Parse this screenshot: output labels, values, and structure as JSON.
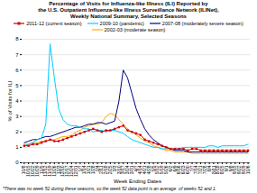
{
  "chart_data": {
    "type": "line",
    "title": "Percentage of Visits for Influenza-like Illness (ILI) Reported by\nthe U.S. Outpatient Influenza-like Illness Surveillance Network (ILINet),\nWeekly National Summary, Selected Seasons",
    "x_label": "Week Ending Dates",
    "y_label": "% of Visits for ILI",
    "footnote": "*There was no week 52 during these seasons, so the week 52 data point is an average  of weeks 52 and 1.",
    "categories": [
      "10/8",
      "10/15",
      "10/22",
      "10/29",
      "11/5",
      "11/12",
      "11/19",
      "11/26",
      "12/3",
      "12/10",
      "12/17",
      "12/24",
      "12/31",
      "1/7",
      "1/14",
      "1/21",
      "1/28",
      "2/4",
      "2/11",
      "2/18",
      "2/25",
      "3/3",
      "3/10",
      "3/17",
      "3/24",
      "3/31",
      "4/7",
      "4/14",
      "4/21",
      "4/28",
      "5/5",
      "5/12",
      "5/19",
      "5/26",
      "6/2",
      "6/9",
      "6/16",
      "6/23",
      "6/30",
      "7/7",
      "7/14",
      "7/21",
      "7/28",
      "8/4",
      "8/11",
      "8/18",
      "8/25",
      "9/1",
      "9/8",
      "9/15",
      "9/22",
      "9/29",
      "10/6"
    ],
    "series": [
      {
        "name": "2011-12 (current season)",
        "color": "#cc0000",
        "marker": "square",
        "values": [
          1.1,
          1.1,
          1.2,
          1.2,
          1.3,
          1.4,
          1.5,
          1.4,
          1.4,
          1.5,
          1.6,
          1.7,
          1.8,
          1.9,
          2.0,
          2.1,
          2.2,
          2.1,
          2.0,
          2.1,
          2.1,
          2.2,
          2.3,
          2.4,
          2.1,
          2.0,
          1.9,
          1.8,
          1.5,
          1.4,
          1.3,
          1.2,
          1.1,
          1.0,
          0.9,
          0.9,
          0.9,
          0.9,
          0.8,
          0.9,
          0.9,
          0.8,
          0.8,
          0.8,
          0.8,
          0.8,
          0.8,
          0.8,
          0.8,
          0.8,
          0.8,
          0.8,
          0.8
        ]
      },
      {
        "name": "2009-10 (pandemic)",
        "color": "#00ccff",
        "values": [
          1.1,
          1.2,
          1.3,
          1.5,
          1.6,
          2.5,
          7.7,
          5.5,
          3.5,
          2.8,
          2.5,
          2.4,
          2.4,
          2.3,
          2.2,
          2.2,
          2.0,
          2.1,
          2.1,
          2.0,
          2.1,
          2.1,
          2.0,
          1.9,
          1.7,
          1.5,
          1.4,
          1.3,
          1.2,
          1.1,
          1.0,
          1.0,
          0.9,
          0.9,
          0.9,
          0.9,
          0.9,
          1.0,
          1.0,
          1.0,
          1.0,
          1.0,
          1.0,
          1.1,
          1.1,
          1.0,
          1.1,
          1.1,
          1.1,
          1.1,
          1.1,
          1.1,
          1.2
        ]
      },
      {
        "name": "2007-08 (moderately severe season)",
        "color": "#000080",
        "values": [
          1.3,
          1.4,
          1.5,
          1.5,
          1.6,
          1.7,
          1.7,
          1.8,
          1.9,
          2.0,
          2.1,
          2.2,
          2.3,
          2.3,
          2.4,
          2.5,
          2.5,
          2.6,
          2.6,
          2.5,
          2.6,
          2.7,
          4.0,
          6.0,
          5.5,
          4.5,
          3.5,
          2.8,
          2.2,
          1.8,
          1.5,
          1.3,
          1.1,
          1.0,
          0.9,
          0.8,
          0.8,
          0.8,
          0.7,
          0.7,
          0.7,
          0.7,
          0.7,
          0.7,
          0.7,
          0.7,
          0.7,
          0.7,
          0.7,
          0.7,
          0.7,
          0.7,
          0.7
        ]
      },
      {
        "name": "2002-03 (moderate season)",
        "color": "#ffaa00",
        "values": [
          1.2,
          1.2,
          1.3,
          1.3,
          1.4,
          1.4,
          1.5,
          1.5,
          1.6,
          1.7,
          1.7,
          1.8,
          2.0,
          2.1,
          2.3,
          2.4,
          2.5,
          2.5,
          2.6,
          3.0,
          3.2,
          3.1,
          2.8,
          2.5,
          2.2,
          2.0,
          1.8,
          1.6,
          1.4,
          1.3,
          1.1,
          1.0,
          0.9,
          0.8,
          0.8,
          0.7,
          0.7,
          0.7,
          0.7,
          0.6,
          0.6,
          0.6,
          0.6,
          0.6,
          0.6,
          0.6,
          0.6,
          0.6,
          0.6,
          0.6,
          0.6,
          0.6,
          0.6
        ]
      }
    ],
    "ylim": [
      0,
      8
    ],
    "yticks": [
      0,
      1,
      2,
      3,
      4,
      5,
      6,
      7,
      8
    ],
    "grid": true
  }
}
